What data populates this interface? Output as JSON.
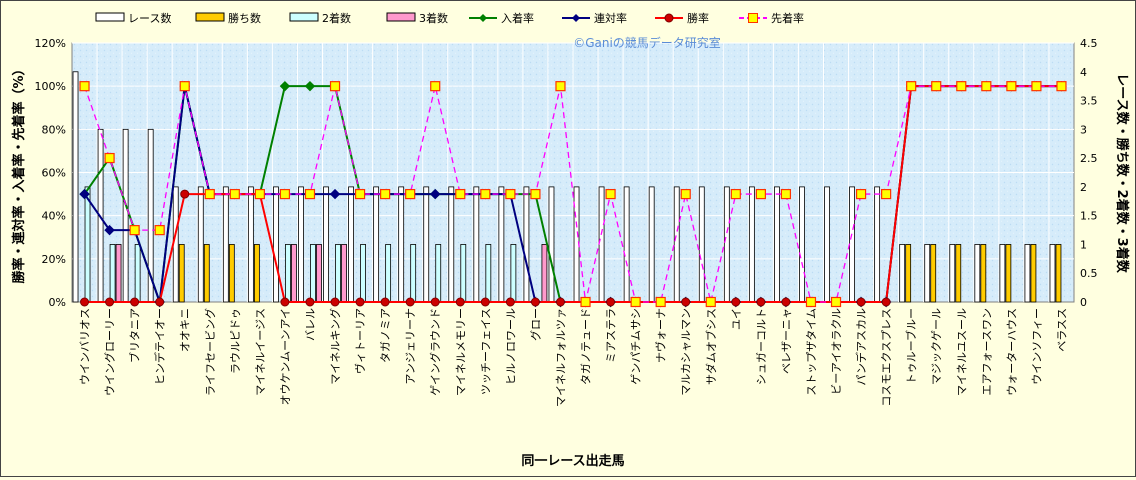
{
  "chart_data": {
    "type": "bar+line",
    "watermark": "©Ganiの競馬データ研究室",
    "xlabel": "同一レース出走馬",
    "ylabel_left": "勝率・連対率・入着率・先着率（%）",
    "ylabel_right": "レース数・勝ち数・2着数・3着数",
    "ylim_left": [
      0,
      120
    ],
    "ylim_right": [
      0,
      4.5
    ],
    "left_ticks": [
      "0%",
      "20%",
      "40%",
      "60%",
      "80%",
      "100%",
      "120%"
    ],
    "right_ticks": [
      "0",
      "0.5",
      "1",
      "1.5",
      "2",
      "2.5",
      "3",
      "3.5",
      "4",
      "4.5"
    ],
    "grid": true,
    "legend_position": "top",
    "categories": [
      "ウインバリオス",
      "ウイングローリー",
      "ブリタニア",
      "ヒンデテイオー",
      "オオキニ",
      "ライフセービング",
      "ラウルピドゥ",
      "マイネルイージス",
      "オウケンムーンアイ",
      "バレル",
      "マイネルキング",
      "ヴィトーリア",
      "タガノミア",
      "アンジェリーナ",
      "ゲイングラウンド",
      "マイネルメモリー",
      "ツッチーフェイス",
      "ヒルノロワール",
      "グロー",
      "マイネルフォルツァ",
      "タガノテュード",
      "ミアステラ",
      "ゲンパチムサシ",
      "ナヴォーナ",
      "マルカシャルマン",
      "サダムオブシス",
      "ユイ",
      "シュガーコルト",
      "ベレザーニャ",
      "ストップザタイム",
      "ビーアイオラクル",
      "パンデアスカル",
      "コスモエクスプレス",
      "トゥルーブルー",
      "マジックゲール",
      "マイネルユスール",
      "エアフォースワン",
      "ウォーターハウス",
      "ウインソフィー",
      "ベラスス"
    ],
    "series": [
      {
        "name": "レース数",
        "kind": "bar",
        "axis": "right",
        "color": "#ffffff",
        "values": [
          4,
          3,
          3,
          3,
          2,
          2,
          2,
          2,
          2,
          2,
          2,
          2,
          2,
          2,
          2,
          2,
          2,
          2,
          2,
          2,
          2,
          2,
          2,
          2,
          2,
          2,
          2,
          2,
          2,
          2,
          2,
          2,
          2,
          1,
          1,
          1,
          1,
          1,
          1,
          1
        ]
      },
      {
        "name": "勝ち数",
        "kind": "bar",
        "axis": "right",
        "color": "#ffcc00",
        "values": [
          0,
          0,
          0,
          0,
          1,
          1,
          1,
          1,
          0,
          0,
          0,
          0,
          0,
          0,
          0,
          0,
          0,
          0,
          0,
          0,
          0,
          0,
          0,
          0,
          0,
          0,
          0,
          0,
          0,
          0,
          0,
          0,
          0,
          1,
          1,
          1,
          1,
          1,
          1,
          1
        ]
      },
      {
        "name": "2着数",
        "kind": "bar",
        "axis": "right",
        "color": "#ccffff",
        "values": [
          2,
          1,
          1,
          0,
          0,
          0,
          0,
          0,
          1,
          1,
          1,
          1,
          1,
          1,
          1,
          1,
          1,
          1,
          0,
          0,
          0,
          0,
          0,
          0,
          0,
          0,
          0,
          0,
          0,
          0,
          0,
          0,
          0,
          0,
          0,
          0,
          0,
          0,
          0,
          0
        ]
      },
      {
        "name": "3着数",
        "kind": "bar",
        "axis": "right",
        "color": "#ff99cc",
        "values": [
          0,
          1,
          0,
          0,
          0,
          0,
          0,
          0,
          1,
          1,
          1,
          0,
          0,
          0,
          0,
          0,
          0,
          0,
          1,
          0,
          0,
          0,
          0,
          0,
          0,
          0,
          0,
          0,
          0,
          0,
          0,
          0,
          0,
          0,
          0,
          0,
          0,
          0,
          0,
          0
        ]
      },
      {
        "name": "入着率",
        "kind": "line",
        "axis": "left",
        "color": "#008000",
        "marker": "diamond",
        "dash": false,
        "values": [
          50,
          66.7,
          33.3,
          0,
          100,
          50,
          50,
          50,
          100,
          100,
          100,
          50,
          50,
          50,
          50,
          50,
          50,
          50,
          50,
          0,
          0,
          0,
          0,
          0,
          0,
          0,
          0,
          0,
          0,
          0,
          0,
          0,
          0,
          100,
          100,
          100,
          100,
          100,
          100,
          100
        ]
      },
      {
        "name": "連対率",
        "kind": "line",
        "axis": "left",
        "color": "#000080",
        "marker": "diamond",
        "dash": false,
        "values": [
          50,
          33.3,
          33.3,
          0,
          100,
          50,
          50,
          50,
          50,
          50,
          50,
          50,
          50,
          50,
          50,
          50,
          50,
          50,
          0,
          0,
          0,
          0,
          0,
          0,
          0,
          0,
          0,
          0,
          0,
          0,
          0,
          0,
          0,
          100,
          100,
          100,
          100,
          100,
          100,
          100
        ]
      },
      {
        "name": "勝率",
        "kind": "line",
        "axis": "left",
        "color": "#ff0000",
        "marker": "circle",
        "dash": false,
        "values": [
          0,
          0,
          0,
          0,
          50,
          50,
          50,
          50,
          0,
          0,
          0,
          0,
          0,
          0,
          0,
          0,
          0,
          0,
          0,
          0,
          0,
          0,
          0,
          0,
          0,
          0,
          0,
          0,
          0,
          0,
          0,
          0,
          0,
          100,
          100,
          100,
          100,
          100,
          100,
          100
        ]
      },
      {
        "name": "先着率",
        "kind": "line",
        "axis": "left",
        "color": "#ff00ff",
        "marker": "square",
        "dash": true,
        "values": [
          100,
          66.7,
          33.3,
          33.3,
          100,
          50,
          50,
          50,
          50,
          50,
          100,
          50,
          50,
          50,
          100,
          50,
          50,
          50,
          50,
          100,
          0,
          50,
          0,
          0,
          50,
          0,
          50,
          50,
          50,
          0,
          0,
          50,
          50,
          100,
          100,
          100,
          100,
          100,
          100,
          100
        ]
      }
    ]
  }
}
